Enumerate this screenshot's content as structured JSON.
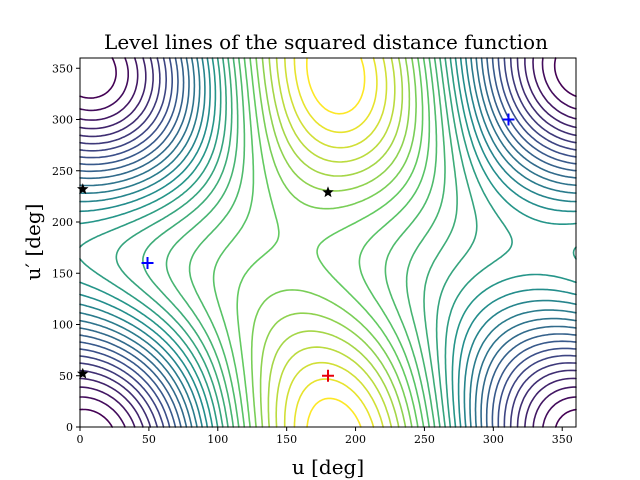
{
  "chart_data": {
    "type": "contour",
    "title": "Level lines of the squared distance function",
    "xlabel": "u [deg]",
    "ylabel": "u′ [deg]",
    "xlim": [
      0,
      360
    ],
    "ylim": [
      0,
      360
    ],
    "xticks": [
      0,
      50,
      100,
      150,
      200,
      250,
      300,
      350
    ],
    "yticks": [
      0,
      50,
      100,
      150,
      200,
      250,
      300,
      350
    ],
    "grid": false,
    "colormap": "viridis",
    "colormap_colors": [
      "#440154",
      "#3b528b",
      "#21918c",
      "#5ec962",
      "#fde725"
    ],
    "levels": 30,
    "markers": [
      {
        "name": "global-max",
        "symbol": "+",
        "color": "#e8000b",
        "x": 180,
        "y": 50
      },
      {
        "name": "local-min-1",
        "symbol": "+",
        "color": "#0000ff",
        "x": 49,
        "y": 160
      },
      {
        "name": "local-min-2",
        "symbol": "+",
        "color": "#0000ff",
        "x": 311,
        "y": 300
      },
      {
        "name": "saddle-1",
        "symbol": "*",
        "color": "#000000",
        "x": 180,
        "y": 229
      },
      {
        "name": "saddle-2",
        "symbol": "*",
        "color": "#000000",
        "x": 2,
        "y": 232
      },
      {
        "name": "saddle-3",
        "symbol": "*",
        "color": "#000000",
        "x": 2,
        "y": 52
      }
    ]
  }
}
